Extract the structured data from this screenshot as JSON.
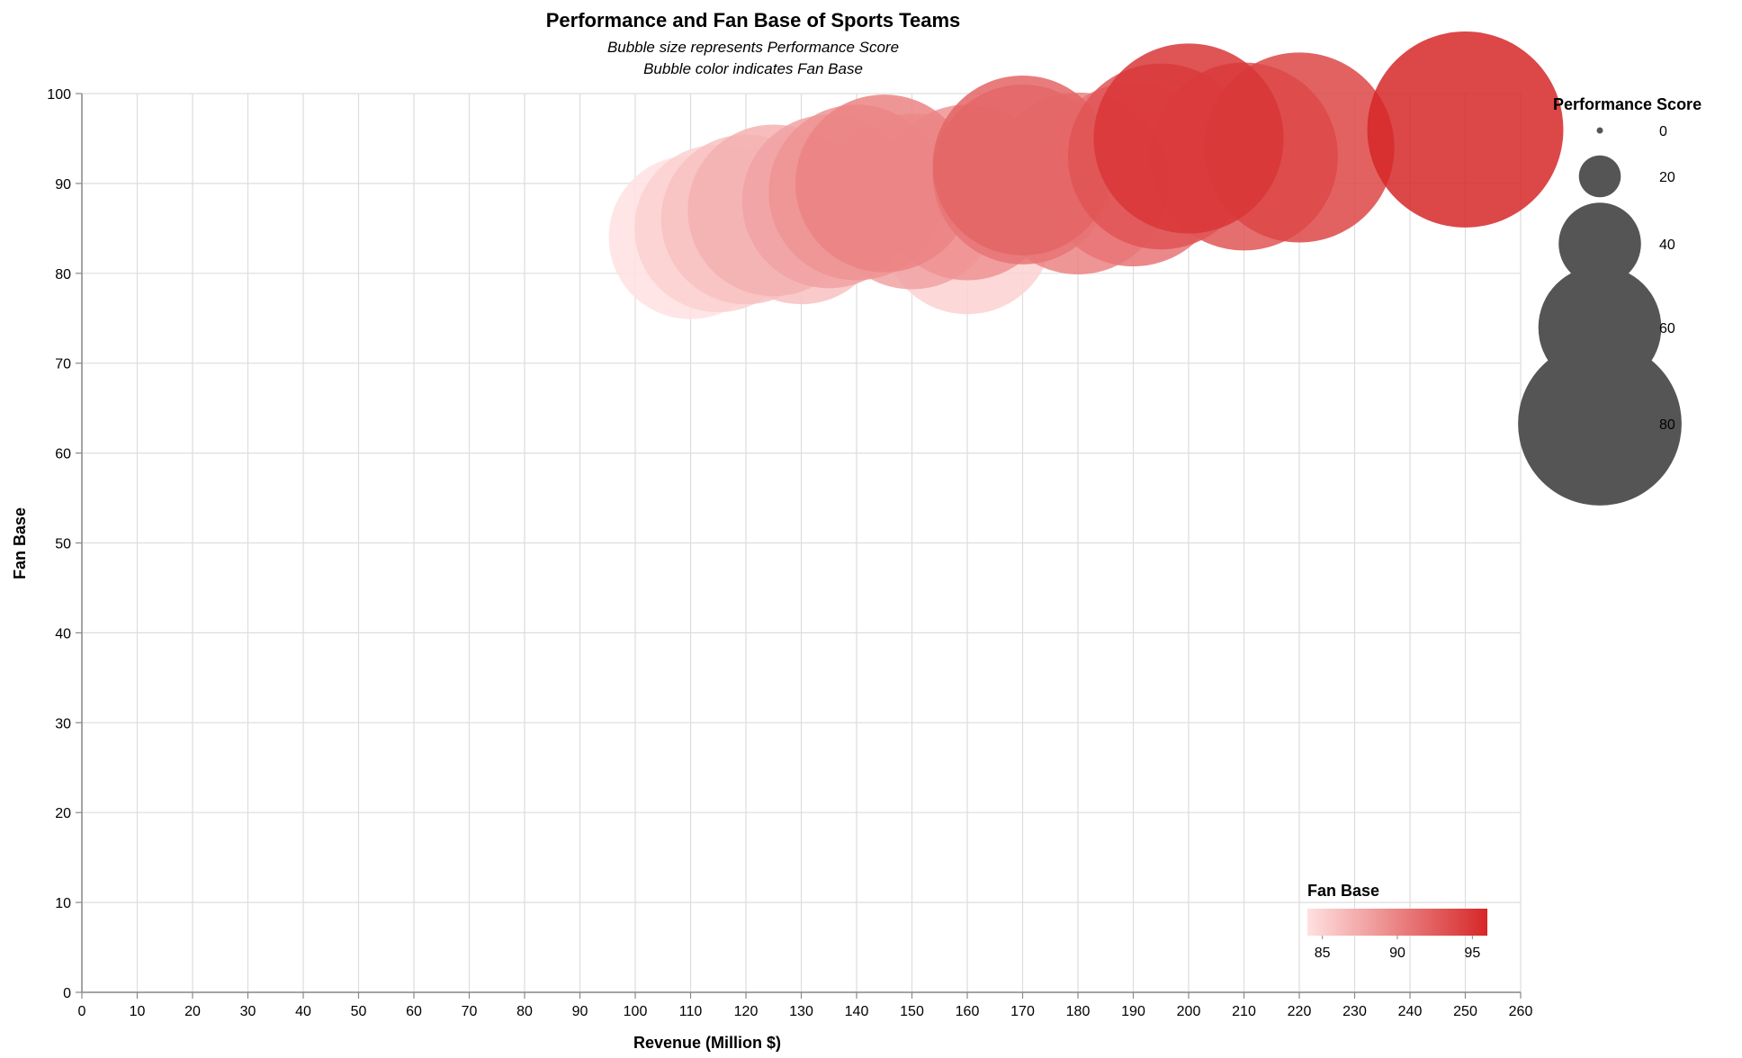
{
  "chart_data": {
    "type": "scatter",
    "title": "Performance and Fan Base of Sports Teams",
    "subtitle": [
      "Bubble size represents Performance Score",
      "Bubble color indicates Fan Base"
    ],
    "xlabel": "Revenue (Million $)",
    "ylabel": "Fan Base",
    "xlim": [
      0,
      260
    ],
    "ylim": [
      0,
      100
    ],
    "x_ticks": [
      0,
      10,
      20,
      30,
      40,
      50,
      60,
      70,
      80,
      90,
      100,
      110,
      120,
      130,
      140,
      150,
      160,
      170,
      180,
      190,
      200,
      210,
      220,
      230,
      240,
      250,
      260
    ],
    "y_ticks": [
      0,
      10,
      20,
      30,
      40,
      50,
      60,
      70,
      80,
      90,
      100
    ],
    "grid": true,
    "size_legend": {
      "title": "Performance Score",
      "values": [
        0,
        20,
        40,
        60,
        80
      ],
      "labels": [
        "0",
        "20",
        "40",
        "60",
        "80"
      ]
    },
    "color_legend": {
      "title": "Fan Base",
      "domain": [
        84,
        96
      ],
      "range": [
        "#ffe0e0",
        "#d62728"
      ],
      "labels": [
        "85",
        "90",
        "95"
      ],
      "label_values": [
        85,
        90,
        95
      ]
    },
    "points": [
      {
        "x": 110,
        "y": 84,
        "size": 80
      },
      {
        "x": 115,
        "y": 85,
        "size": 82
      },
      {
        "x": 120,
        "y": 86,
        "size": 83
      },
      {
        "x": 125,
        "y": 87,
        "size": 84
      },
      {
        "x": 130,
        "y": 86,
        "size": 83
      },
      {
        "x": 135,
        "y": 88,
        "size": 85
      },
      {
        "x": 140,
        "y": 89,
        "size": 86
      },
      {
        "x": 145,
        "y": 90,
        "size": 87
      },
      {
        "x": 150,
        "y": 88,
        "size": 86
      },
      {
        "x": 160,
        "y": 85,
        "size": 84
      },
      {
        "x": 160,
        "y": 89,
        "size": 86
      },
      {
        "x": 170,
        "y": 91,
        "size": 88
      },
      {
        "x": 170,
        "y": 92,
        "size": 88
      },
      {
        "x": 180,
        "y": 90,
        "size": 89
      },
      {
        "x": 190,
        "y": 91,
        "size": 90
      },
      {
        "x": 195,
        "y": 93,
        "size": 91
      },
      {
        "x": 200,
        "y": 95,
        "size": 93
      },
      {
        "x": 210,
        "y": 93,
        "size": 92
      },
      {
        "x": 220,
        "y": 94,
        "size": 93
      },
      {
        "x": 250,
        "y": 96,
        "size": 96
      }
    ]
  }
}
